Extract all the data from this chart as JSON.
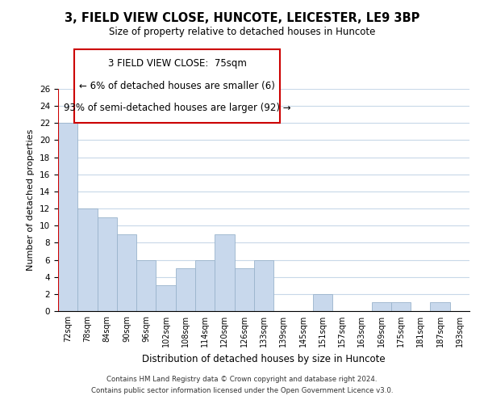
{
  "title": "3, FIELD VIEW CLOSE, HUNCOTE, LEICESTER, LE9 3BP",
  "subtitle": "Size of property relative to detached houses in Huncote",
  "xlabel": "Distribution of detached houses by size in Huncote",
  "ylabel": "Number of detached properties",
  "bins": [
    "72sqm",
    "78sqm",
    "84sqm",
    "90sqm",
    "96sqm",
    "102sqm",
    "108sqm",
    "114sqm",
    "120sqm",
    "126sqm",
    "133sqm",
    "139sqm",
    "145sqm",
    "151sqm",
    "157sqm",
    "163sqm",
    "169sqm",
    "175sqm",
    "181sqm",
    "187sqm",
    "193sqm"
  ],
  "counts": [
    22,
    12,
    11,
    9,
    6,
    3,
    5,
    6,
    9,
    5,
    6,
    0,
    0,
    2,
    0,
    0,
    1,
    1,
    0,
    1,
    0
  ],
  "bar_color": "#c8d8ec",
  "bar_edge_color": "#9ab4cc",
  "annotation_line1": "3 FIELD VIEW CLOSE:  75sqm",
  "annotation_line2": "← 6% of detached houses are smaller (6)",
  "annotation_line3": "93% of semi-detached houses are larger (92) →",
  "ylim": [
    0,
    26
  ],
  "yticks": [
    0,
    2,
    4,
    6,
    8,
    10,
    12,
    14,
    16,
    18,
    20,
    22,
    24,
    26
  ],
  "footer_line1": "Contains HM Land Registry data © Crown copyright and database right 2024.",
  "footer_line2": "Contains public sector information licensed under the Open Government Licence v3.0.",
  "grid_color": "#c8d8e8",
  "red_color": "#cc0000"
}
